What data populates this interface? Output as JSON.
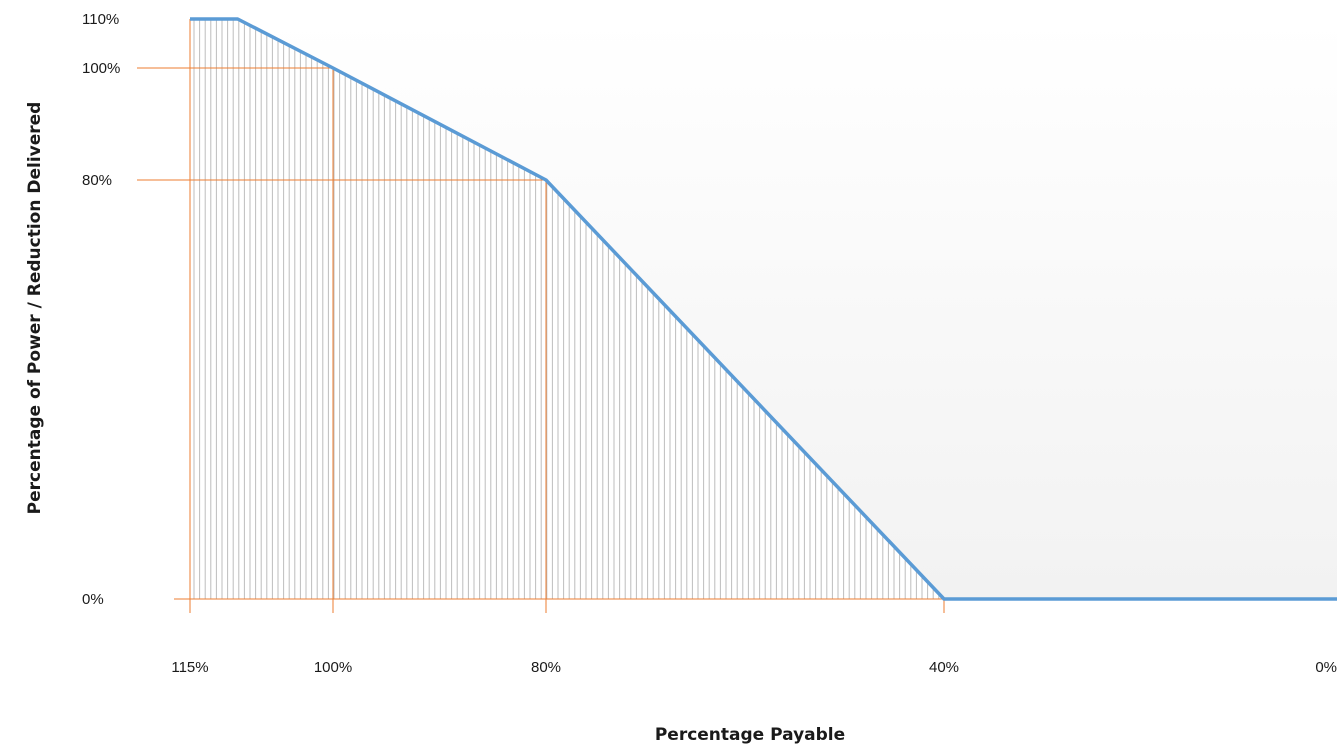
{
  "chart_data": {
    "type": "area",
    "title": "",
    "xlabel": "Percentage Payable",
    "ylabel": "Percentage of Power / Reduction Delivered",
    "x_axis_reversed": true,
    "x_ticks": [
      "115%",
      "100%",
      "80%",
      "40%",
      "0%"
    ],
    "y_ticks": [
      "110%",
      "100%",
      "80%",
      "0%"
    ],
    "series": [
      {
        "values_x": [
          115,
          110,
          100,
          80,
          40,
          0
        ],
        "values_y": [
          110,
          110,
          100,
          80,
          0,
          0
        ]
      }
    ],
    "reference_lines": [
      {
        "x": 115,
        "y": 110
      },
      {
        "x": 100,
        "y": 100
      },
      {
        "x": 80,
        "y": 80
      },
      {
        "x": 40,
        "y": 0
      }
    ],
    "hatched_fill_under_curve": true,
    "colors": {
      "line": "#5b9bd5",
      "guide": "#ed7d31",
      "hatch": "#bdbdbd",
      "background_gradient_start": "#f2f2f2"
    }
  }
}
